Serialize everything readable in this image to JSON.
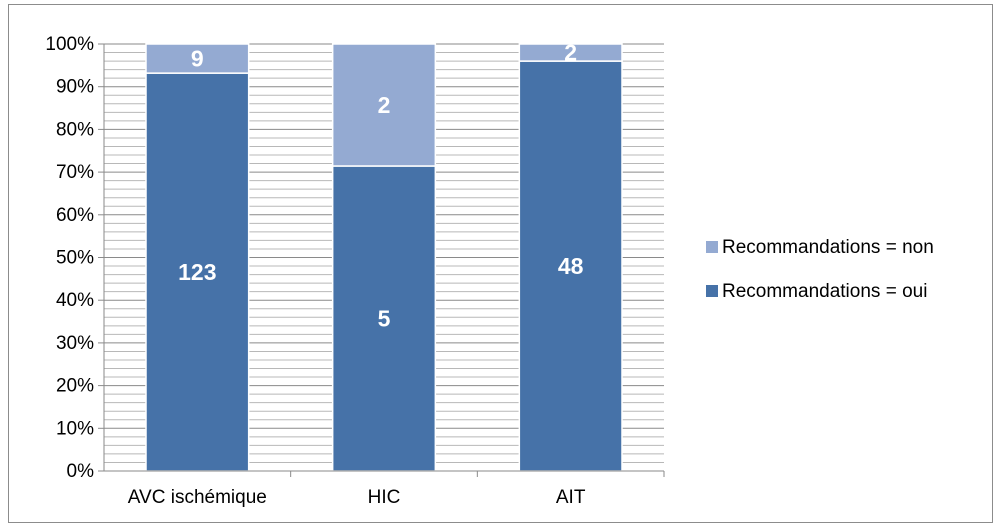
{
  "chart_data": {
    "type": "bar",
    "stacked": "percent",
    "categories": [
      "AVC ischémique",
      "HIC",
      "AIT"
    ],
    "series": [
      {
        "name": "Recommandations = oui",
        "values": [
          123,
          5,
          48
        ],
        "color": "#4672a8"
      },
      {
        "name": "Recommandations = non",
        "values": [
          9,
          2,
          2
        ],
        "color": "#94aad2"
      }
    ],
    "y_ticks": [
      "0%",
      "10%",
      "20%",
      "30%",
      "40%",
      "50%",
      "60%",
      "70%",
      "80%",
      "90%",
      "100%"
    ],
    "ylim": [
      0,
      100
    ],
    "grid": true,
    "legend": "right",
    "legend_order": [
      1,
      0
    ]
  }
}
